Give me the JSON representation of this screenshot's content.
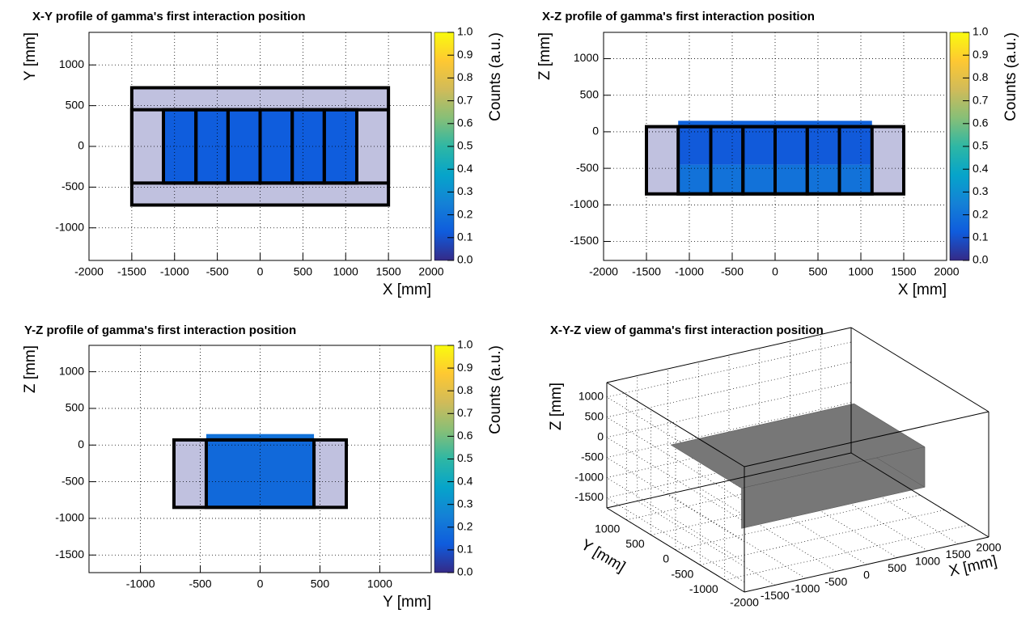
{
  "chart_data": [
    {
      "type": "heatmap",
      "title": "X-Y profile of gamma's first interaction position",
      "xlabel": "X [mm]",
      "ylabel": "Y [mm]",
      "zlabel": "Counts (a.u.)",
      "xlim": [
        -2000,
        2000
      ],
      "ylim": [
        -1400,
        1400
      ],
      "xticks": [
        -2000,
        -1500,
        -1000,
        -500,
        0,
        500,
        1000,
        1500,
        2000
      ],
      "yticks": [
        -1000,
        -500,
        0,
        500,
        1000
      ],
      "zlim": [
        0,
        1
      ],
      "zticks": [
        {
          "value": 0,
          "label": "0.0"
        },
        {
          "value": 0.1,
          "label": "0.1"
        },
        {
          "value": 0.2,
          "label": "0.2"
        },
        {
          "value": 0.3,
          "label": "0.3"
        },
        {
          "value": 0.4,
          "label": "0.4"
        },
        {
          "value": 0.5,
          "label": "0.5"
        },
        {
          "value": 0.6,
          "label": "0.6"
        },
        {
          "value": 0.7,
          "label": "0.7"
        },
        {
          "value": 0.8,
          "label": "0.8"
        },
        {
          "value": 0.9,
          "label": "0.9"
        },
        {
          "value": 1,
          "label": "1.0"
        }
      ],
      "colormap": [
        "#352a87",
        "#0f5cdd",
        "#1481d6",
        "#06a4ca",
        "#2eb7a4",
        "#87bf77",
        "#d1bb59",
        "#fec832",
        "#f9fb0e"
      ],
      "grid": true,
      "cells": [
        {
          "x0": -1500,
          "x1": 1500,
          "y0": 450,
          "y1": 720,
          "value": 0.02
        },
        {
          "x0": -1500,
          "x1": 1500,
          "y0": -720,
          "y1": -450,
          "value": 0.02
        },
        {
          "x0": -1500,
          "x1": -1130,
          "y0": -450,
          "y1": 450,
          "value": 0.02
        },
        {
          "x0": 1130,
          "x1": 1500,
          "y0": -450,
          "y1": 450,
          "value": 0.02
        },
        {
          "x0": -1130,
          "x1": 1130,
          "y0": -450,
          "y1": 450,
          "value": 0.13
        }
      ],
      "outline_color": "#000000",
      "outlines": [
        [
          -1500,
          -720,
          1500,
          720
        ],
        [
          -1500,
          -450,
          1500,
          450
        ],
        [
          -1130,
          -450,
          -750,
          450
        ],
        [
          -750,
          -450,
          -375,
          450
        ],
        [
          -375,
          -450,
          0,
          450
        ],
        [
          0,
          -450,
          375,
          450
        ],
        [
          375,
          -450,
          750,
          450
        ],
        [
          750,
          -450,
          1130,
          450
        ]
      ]
    },
    {
      "type": "heatmap",
      "title": "X-Z profile of gamma's first interaction position",
      "xlabel": "X [mm]",
      "ylabel": "Z [mm]",
      "zlabel": "Counts (a.u.)",
      "xlim": [
        -2000,
        2000
      ],
      "ylim": [
        -1760,
        1360
      ],
      "xticks": [
        -2000,
        -1500,
        -1000,
        -500,
        0,
        500,
        1000,
        1500,
        2000
      ],
      "yticks": [
        -1500,
        -1000,
        -500,
        0,
        500,
        1000
      ],
      "zlim": [
        0,
        1
      ],
      "zticks": [
        {
          "value": 0,
          "label": "0.0"
        },
        {
          "value": 0.1,
          "label": "0.1"
        },
        {
          "value": 0.2,
          "label": "0.2"
        },
        {
          "value": 0.3,
          "label": "0.3"
        },
        {
          "value": 0.4,
          "label": "0.4"
        },
        {
          "value": 0.5,
          "label": "0.5"
        },
        {
          "value": 0.6,
          "label": "0.6"
        },
        {
          "value": 0.7,
          "label": "0.7"
        },
        {
          "value": 0.8,
          "label": "0.8"
        },
        {
          "value": 0.9,
          "label": "0.9"
        },
        {
          "value": 1,
          "label": "1.0"
        }
      ],
      "colormap": [
        "#352a87",
        "#0f5cdd",
        "#1481d6",
        "#06a4ca",
        "#2eb7a4",
        "#87bf77",
        "#d1bb59",
        "#fec832",
        "#f9fb0e"
      ],
      "grid": true,
      "cells": [
        {
          "x0": -1500,
          "x1": -1130,
          "y0": -850,
          "y1": 70,
          "value": 0.02
        },
        {
          "x0": 1130,
          "x1": 1500,
          "y0": -850,
          "y1": 70,
          "value": 0.02
        },
        {
          "x0": -1130,
          "x1": 1130,
          "y0": -850,
          "y1": -450,
          "value": 0.2
        },
        {
          "x0": -1130,
          "x1": 1130,
          "y0": -450,
          "y1": 70,
          "value": 0.12
        },
        {
          "x0": -1130,
          "x1": 1130,
          "y0": 70,
          "y1": 150,
          "value": 0.15
        }
      ],
      "outline_color": "#000000",
      "outlines": [
        [
          -1500,
          -850,
          1500,
          70
        ],
        [
          -1130,
          -850,
          -750,
          70
        ],
        [
          -750,
          -850,
          -375,
          70
        ],
        [
          -375,
          -850,
          0,
          70
        ],
        [
          0,
          -850,
          375,
          70
        ],
        [
          375,
          -850,
          750,
          70
        ],
        [
          750,
          -850,
          1130,
          70
        ]
      ]
    },
    {
      "type": "heatmap",
      "title": "Y-Z profile of gamma's first interaction position",
      "xlabel": "Y [mm]",
      "ylabel": "Z [mm]",
      "zlabel": "Counts (a.u.)",
      "xlim": [
        -1430,
        1430
      ],
      "ylim": [
        -1740,
        1360
      ],
      "xticks": [
        -1000,
        -500,
        0,
        500,
        1000
      ],
      "yticks": [
        -1500,
        -1000,
        -500,
        0,
        500,
        1000
      ],
      "zlim": [
        0,
        1
      ],
      "zticks": [
        {
          "value": 0,
          "label": "0.0"
        },
        {
          "value": 0.1,
          "label": "0.1"
        },
        {
          "value": 0.2,
          "label": "0.2"
        },
        {
          "value": 0.3,
          "label": "0.3"
        },
        {
          "value": 0.4,
          "label": "0.4"
        },
        {
          "value": 0.5,
          "label": "0.5"
        },
        {
          "value": 0.6,
          "label": "0.6"
        },
        {
          "value": 0.7,
          "label": "0.7"
        },
        {
          "value": 0.8,
          "label": "0.8"
        },
        {
          "value": 0.9,
          "label": "0.9"
        },
        {
          "value": 1,
          "label": "1.0"
        }
      ],
      "colormap": [
        "#352a87",
        "#0f5cdd",
        "#1481d6",
        "#06a4ca",
        "#2eb7a4",
        "#87bf77",
        "#d1bb59",
        "#fec832",
        "#f9fb0e"
      ],
      "grid": true,
      "cells": [
        {
          "x0": -720,
          "x1": -450,
          "y0": -850,
          "y1": 70,
          "value": 0.02
        },
        {
          "x0": 450,
          "x1": 720,
          "y0": -850,
          "y1": 70,
          "value": 0.02
        },
        {
          "x0": -450,
          "x1": 450,
          "y0": -850,
          "y1": 70,
          "value": 0.17
        },
        {
          "x0": -450,
          "x1": 450,
          "y0": 70,
          "y1": 150,
          "value": 0.2
        }
      ],
      "outline_color": "#000000",
      "outlines": [
        [
          -720,
          -850,
          720,
          70
        ],
        [
          -450,
          -850,
          450,
          70
        ]
      ]
    },
    {
      "type": "scatter3d",
      "title": "X-Y-Z view of gamma's first interaction position",
      "xlabel": "X [mm]",
      "ylabel": "Y [mm]",
      "zlabel": "Z [mm]",
      "xlim": [
        -2000,
        2000
      ],
      "ylim": [
        -1400,
        1400
      ],
      "zlim": [
        -1750,
        1360
      ],
      "xticks": [
        -2000,
        -1500,
        -1000,
        -500,
        0,
        500,
        1000,
        1500,
        2000
      ],
      "yticks": [
        -1000,
        -500,
        0,
        500,
        1000
      ],
      "zticks": [
        -1500,
        -1000,
        -500,
        0,
        500,
        1000
      ],
      "grid": true,
      "color": "#777777",
      "regions": [
        {
          "x0": -1500,
          "x1": 1500,
          "y0": -720,
          "y1": 720,
          "z0": -850,
          "z1": 150
        }
      ]
    }
  ]
}
